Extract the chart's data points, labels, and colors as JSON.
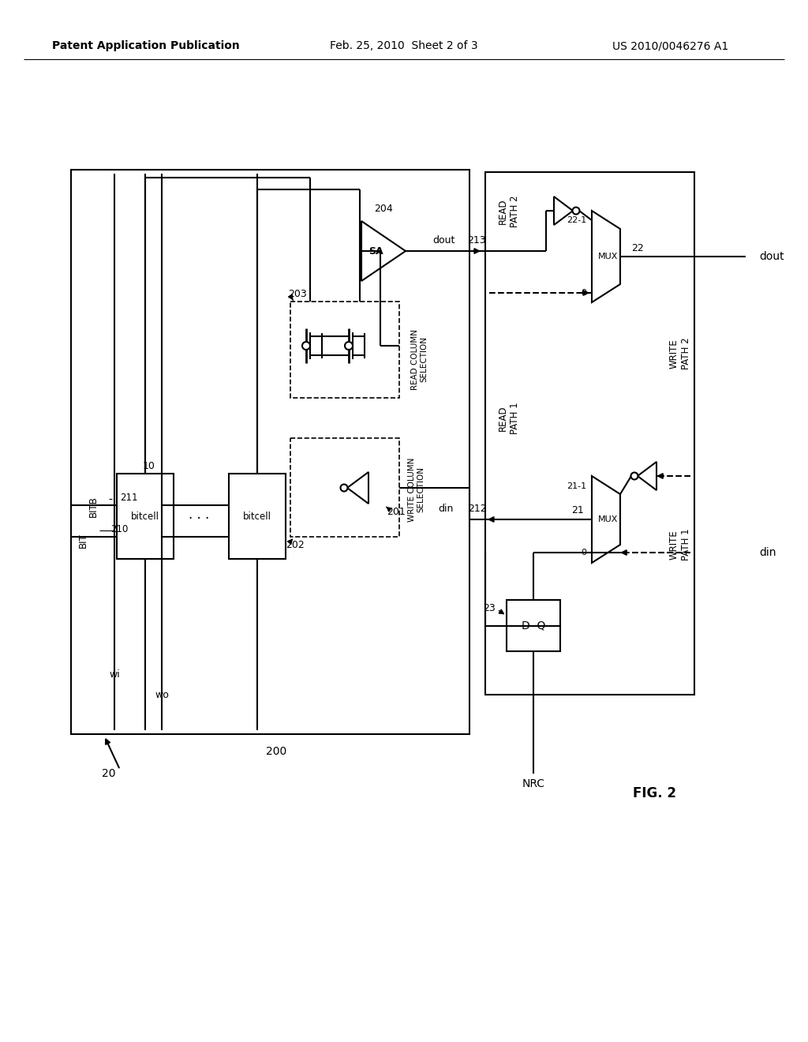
{
  "bg_color": "#ffffff",
  "header_left": "Patent Application Publication",
  "header_center": "Feb. 25, 2010  Sheet 2 of 3",
  "header_right": "US 2010/0046276 A1",
  "figure_label": "FIG. 2"
}
